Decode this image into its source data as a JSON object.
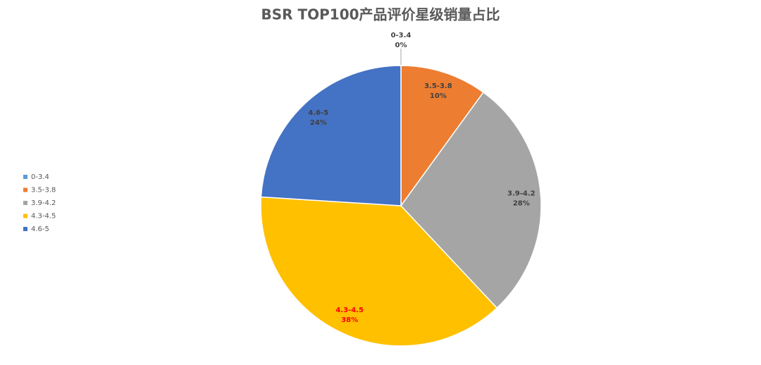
{
  "chart_data": {
    "type": "pie",
    "title": "BSR TOP100产品评价星级销量占比",
    "categories": [
      "0-3.4",
      "3.5-3.8",
      "3.9-4.2",
      "4.3-4.5",
      "4.6-5"
    ],
    "values": [
      0,
      10,
      28,
      38,
      24
    ],
    "value_labels": [
      "0%",
      "10%",
      "28%",
      "38%",
      "24%"
    ],
    "colors": [
      "#5b9bd5",
      "#ed7d31",
      "#a5a5a5",
      "#ffc000",
      "#4472c4"
    ],
    "legend": "left"
  }
}
